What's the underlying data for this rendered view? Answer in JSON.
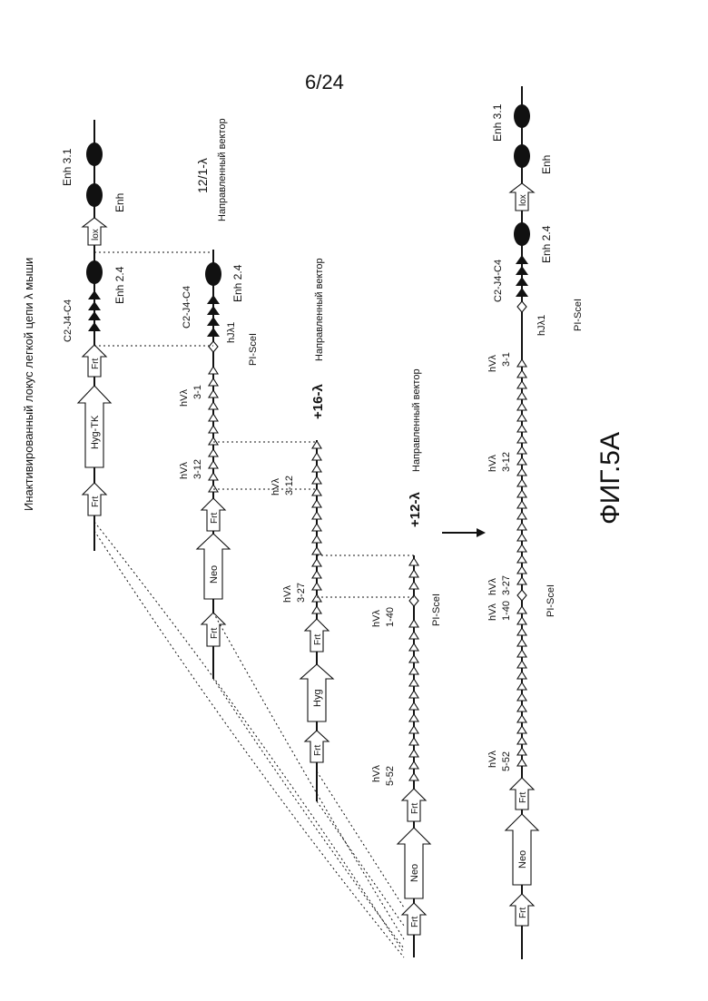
{
  "page_number": "6/24",
  "figure_label": "ФИГ.5A",
  "main_title": "Инактивированный локус легкой цепи λ мыши",
  "vector_labels": {
    "v1": "12/1-λ",
    "v1_sub": "Направленный вектор",
    "v2_plus": "+16-λ",
    "v2_sub": "Направленный вектор",
    "v3_plus": "+12-λ",
    "v3_sub": "Направленный вектор"
  },
  "labels": {
    "c2j4c4": "C2-J4-C4",
    "enh24": "Enh 2.4",
    "enh": "Enh",
    "enh31": "Enh 3.1",
    "pisce": "PI-SceI",
    "hl1": "hJλ1",
    "hvl": "hVλ",
    "g31": "3-1",
    "g312": "3-12",
    "g327": "3-27",
    "g140": "1-40",
    "g552": "5-52"
  },
  "boxes": {
    "frt": "Frt",
    "neo": "Neo",
    "hyg": "Hyg",
    "hygtk": "Hyg-TK",
    "lox": "lox"
  }
}
